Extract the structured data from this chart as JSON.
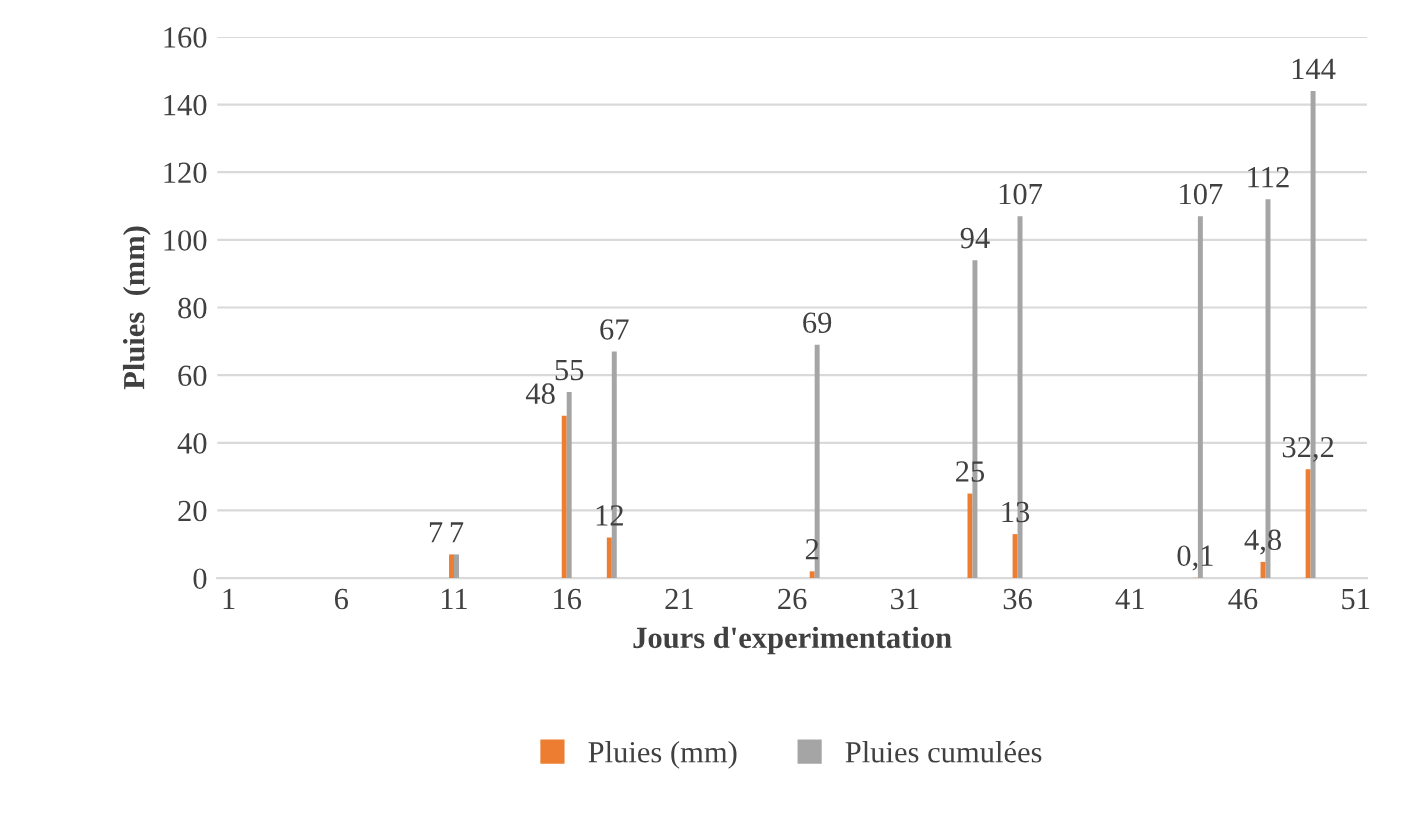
{
  "chart_data": {
    "type": "bar",
    "xlabel": "Jours d'experimentation",
    "ylabel": "Pluies  (mm)",
    "categories": [
      "1",
      null,
      null,
      null,
      null,
      "6",
      null,
      null,
      null,
      null,
      "11",
      null,
      null,
      null,
      null,
      "16",
      null,
      null,
      null,
      null,
      "21",
      null,
      null,
      null,
      null,
      "26",
      null,
      null,
      null,
      null,
      "31",
      null,
      null,
      null,
      null,
      "36",
      null,
      null,
      null,
      null,
      "41",
      null,
      null,
      null,
      null,
      "46",
      null,
      null,
      null,
      null,
      "51"
    ],
    "series": [
      {
        "name": "Pluies (mm)",
        "color": "#ed7d31",
        "values": [
          null,
          null,
          null,
          null,
          null,
          null,
          null,
          null,
          null,
          null,
          7,
          null,
          null,
          null,
          null,
          48,
          null,
          12,
          null,
          null,
          null,
          null,
          null,
          null,
          null,
          null,
          2,
          null,
          null,
          null,
          null,
          null,
          null,
          25,
          null,
          13,
          null,
          null,
          null,
          null,
          null,
          null,
          null,
          0.1,
          null,
          null,
          4.8,
          null,
          32.2,
          null,
          null
        ],
        "value_labels": [
          null,
          null,
          null,
          null,
          null,
          null,
          null,
          null,
          null,
          null,
          "7",
          null,
          null,
          null,
          null,
          "48",
          null,
          "12",
          null,
          null,
          null,
          null,
          null,
          null,
          null,
          null,
          "2",
          null,
          null,
          null,
          null,
          null,
          null,
          "25",
          null,
          "13",
          null,
          null,
          null,
          null,
          null,
          null,
          null,
          "0,1",
          null,
          null,
          "4,8",
          null,
          "32,2",
          null,
          null
        ]
      },
      {
        "name": "Pluies cumulées",
        "color": "#a5a5a5",
        "values": [
          null,
          null,
          null,
          null,
          null,
          null,
          null,
          null,
          null,
          null,
          7,
          null,
          null,
          null,
          null,
          55,
          null,
          67,
          null,
          null,
          null,
          null,
          null,
          null,
          null,
          null,
          69,
          null,
          null,
          null,
          null,
          null,
          null,
          94,
          null,
          107,
          null,
          null,
          null,
          null,
          null,
          null,
          null,
          107,
          null,
          null,
          112,
          null,
          144,
          null,
          null
        ],
        "value_labels": [
          null,
          null,
          null,
          null,
          null,
          null,
          null,
          null,
          null,
          null,
          "7",
          null,
          null,
          null,
          null,
          "55",
          null,
          "67",
          null,
          null,
          null,
          null,
          null,
          null,
          null,
          null,
          "69",
          null,
          null,
          null,
          null,
          null,
          null,
          "94",
          null,
          "107",
          null,
          null,
          null,
          null,
          null,
          null,
          null,
          "107",
          null,
          null,
          "112",
          null,
          "144",
          null,
          null
        ]
      }
    ],
    "ylim": [
      0,
      160
    ],
    "yticks": [
      0,
      20,
      40,
      60,
      80,
      100,
      120,
      140,
      160
    ],
    "grid": "y",
    "legend": "bottom"
  }
}
